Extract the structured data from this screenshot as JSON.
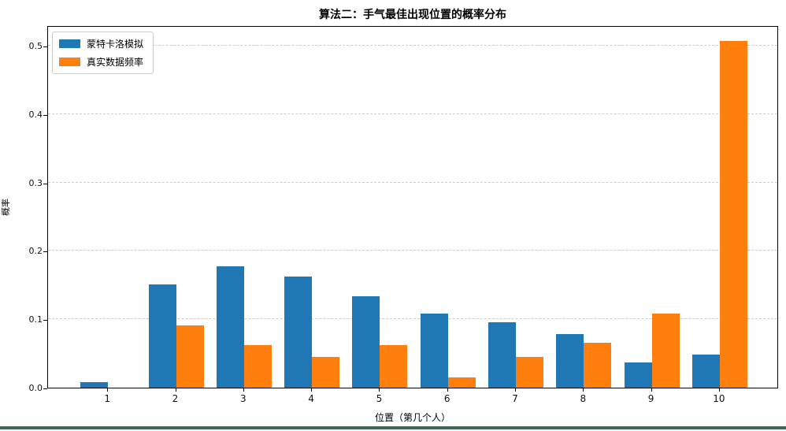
{
  "chart_data": {
    "type": "bar",
    "title": "算法二：手气最佳出现位置的概率分布",
    "xlabel": "位置（第几个人）",
    "ylabel": "概率",
    "categories": [
      "1",
      "2",
      "3",
      "4",
      "5",
      "6",
      "7",
      "8",
      "9",
      "10"
    ],
    "series": [
      {
        "name": "蒙特卡洛模拟",
        "color": "#1f77b4",
        "values": [
          0.008,
          0.151,
          0.178,
          0.162,
          0.134,
          0.108,
          0.096,
          0.078,
          0.037,
          0.048
        ]
      },
      {
        "name": "真实数据频率",
        "color": "#ff7f0e",
        "values": [
          0.0,
          0.091,
          0.062,
          0.045,
          0.062,
          0.015,
          0.045,
          0.066,
          0.108,
          0.507
        ]
      }
    ],
    "ylim": [
      0,
      0.53
    ],
    "yticks": [
      "0.0",
      "0.1",
      "0.2",
      "0.3",
      "0.4",
      "0.5"
    ],
    "grid": "horizontal-dashed",
    "legend_position": "upper-left"
  },
  "colors": {
    "series_blue": "#1f77b4",
    "series_orange": "#ff7f0e",
    "gridline": "#cccccc",
    "axis": "#000000",
    "bottom_strip": "#3e6b52",
    "background": "#ffffff"
  }
}
